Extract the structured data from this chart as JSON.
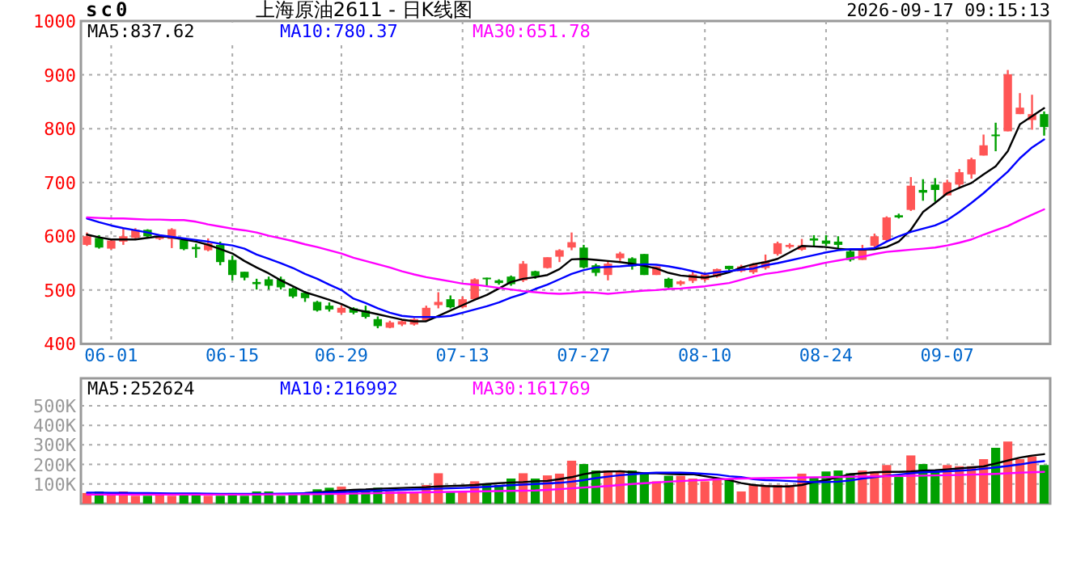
{
  "chart_data": [
    {
      "type": "candlestick",
      "title": "上海原油2611 - 日K线图",
      "annotations": [
        "sc0",
        "2026-09-17 09:15:13"
      ],
      "categories": [
        null,
        null,
        "06-01",
        null,
        null,
        null,
        null,
        null,
        null,
        null,
        null,
        null,
        "06-15",
        null,
        null,
        null,
        null,
        null,
        null,
        null,
        null,
        "06-29",
        null,
        null,
        null,
        null,
        null,
        null,
        null,
        null,
        null,
        "07-13",
        null,
        null,
        null,
        null,
        null,
        null,
        null,
        null,
        null,
        "07-27",
        null,
        null,
        null,
        null,
        null,
        null,
        null,
        null,
        null,
        "08-10",
        null,
        null,
        null,
        null,
        null,
        null,
        null,
        null,
        null,
        "08-24",
        null,
        null,
        null,
        null,
        null,
        null,
        null,
        null,
        null,
        "09-07",
        null,
        null,
        null,
        null,
        null,
        null,
        null,
        null
      ],
      "ohlc": [
        [
          584,
          607,
          582,
          600
        ],
        [
          597,
          602,
          577,
          579
        ],
        [
          577,
          594,
          575,
          592
        ],
        [
          590,
          615,
          584,
          600
        ],
        [
          597,
          615,
          595,
          612
        ],
        [
          612,
          613,
          599,
          600
        ],
        [
          595,
          602,
          593,
          600
        ],
        [
          595,
          615,
          578,
          613
        ],
        [
          593,
          594,
          574,
          576
        ],
        [
          580,
          586,
          560,
          576
        ],
        [
          574,
          596,
          572,
          587
        ],
        [
          584,
          590,
          546,
          552
        ],
        [
          556,
          564,
          518,
          528
        ],
        [
          534,
          534,
          518,
          523
        ],
        [
          515,
          521,
          501,
          511
        ],
        [
          520,
          525,
          501,
          508
        ],
        [
          520,
          525,
          501,
          505
        ],
        [
          503,
          505,
          485,
          488
        ],
        [
          495,
          498,
          478,
          485
        ],
        [
          478,
          480,
          460,
          462
        ],
        [
          471,
          477,
          460,
          464
        ],
        [
          458,
          472,
          455,
          467
        ],
        [
          466,
          468,
          455,
          458
        ],
        [
          462,
          471,
          447,
          450
        ],
        [
          446,
          451,
          429,
          433
        ],
        [
          430,
          443,
          429,
          440
        ],
        [
          436,
          444,
          433,
          442
        ],
        [
          436,
          448,
          434,
          446
        ],
        [
          444,
          471,
          442,
          467
        ],
        [
          472,
          496,
          466,
          478
        ],
        [
          483,
          490,
          466,
          468
        ],
        [
          468,
          488,
          466,
          483
        ],
        [
          483,
          522,
          481,
          520
        ],
        [
          523,
          523,
          506,
          520
        ],
        [
          518,
          520,
          510,
          513
        ],
        [
          525,
          527,
          508,
          511
        ],
        [
          518,
          554,
          515,
          549
        ],
        [
          535,
          536,
          521,
          526
        ],
        [
          541,
          561,
          540,
          561
        ],
        [
          562,
          576,
          552,
          574
        ],
        [
          579,
          607,
          574,
          589
        ],
        [
          579,
          584,
          540,
          542
        ],
        [
          546,
          549,
          526,
          532
        ],
        [
          528,
          554,
          518,
          549
        ],
        [
          559,
          571,
          554,
          568
        ],
        [
          559,
          561,
          538,
          544
        ],
        [
          567,
          567,
          528,
          528
        ],
        [
          528,
          544,
          528,
          544
        ],
        [
          521,
          523,
          503,
          505
        ],
        [
          511,
          518,
          508,
          516
        ],
        [
          517,
          535,
          513,
          529
        ],
        [
          519,
          532,
          516,
          529
        ],
        [
          525,
          540,
          523,
          539
        ],
        [
          545,
          545,
          532,
          539
        ],
        [
          535,
          547,
          533,
          544
        ],
        [
          533,
          550,
          530,
          548
        ],
        [
          541,
          566,
          538,
          553
        ],
        [
          567,
          590,
          564,
          587
        ],
        [
          580,
          587,
          577,
          584
        ],
        [
          575,
          595,
          573,
          583
        ],
        [
          596,
          602,
          582,
          592
        ],
        [
          592,
          602,
          582,
          586
        ],
        [
          590,
          600,
          578,
          584
        ],
        [
          572,
          574,
          553,
          556
        ],
        [
          556,
          584,
          556,
          574
        ],
        [
          582,
          605,
          579,
          600
        ],
        [
          593,
          637,
          590,
          635
        ],
        [
          639,
          642,
          633,
          635
        ],
        [
          649,
          710,
          647,
          694
        ],
        [
          686,
          706,
          666,
          681
        ],
        [
          696,
          708,
          664,
          686
        ],
        [
          676,
          705,
          676,
          700
        ],
        [
          696,
          725,
          691,
          719
        ],
        [
          715,
          746,
          707,
          743
        ],
        [
          750,
          789,
          750,
          769
        ],
        [
          789,
          811,
          758,
          786
        ],
        [
          795,
          909,
          795,
          901
        ],
        [
          827,
          866,
          827,
          839
        ],
        [
          816,
          863,
          798,
          827
        ],
        [
          827,
          832,
          787,
          803
        ]
      ],
      "series": [
        {
          "type": "line",
          "name": "MA5:837.62",
          "color": "#000000",
          "values": [
            603,
            598,
            594,
            594,
            594,
            597,
            600,
            598,
            594,
            590,
            584,
            576,
            568,
            554,
            542,
            531,
            518,
            507,
            496,
            489,
            482,
            474,
            464,
            460,
            455,
            450,
            445,
            442,
            442,
            452,
            462,
            472,
            482,
            491,
            503,
            515,
            521,
            524,
            528,
            539,
            557,
            558,
            556,
            554,
            552,
            549,
            545,
            540,
            532,
            527,
            525,
            523,
            527,
            533,
            542,
            548,
            552,
            558,
            570,
            582,
            581,
            580,
            577,
            575,
            575,
            576,
            580,
            590,
            612,
            645,
            662,
            680,
            690,
            699,
            715,
            730,
            758,
            808,
            823,
            838
          ]
        },
        {
          "type": "line",
          "name": "MA10:780.37",
          "color": "#0000ff",
          "values": [
            633,
            626,
            620,
            615,
            611,
            607,
            602,
            599,
            596,
            593,
            590,
            586,
            583,
            577,
            566,
            558,
            550,
            541,
            530,
            521,
            510,
            500,
            484,
            476,
            466,
            458,
            452,
            450,
            450,
            450,
            452,
            458,
            464,
            470,
            477,
            486,
            493,
            502,
            510,
            520,
            530,
            537,
            542,
            543,
            544,
            546,
            548,
            547,
            544,
            540,
            535,
            530,
            533,
            535,
            538,
            540,
            546,
            550,
            555,
            560,
            565,
            570,
            574,
            576,
            576,
            578,
            590,
            600,
            608,
            614,
            620,
            630,
            645,
            662,
            680,
            700,
            720,
            745,
            765,
            780
          ]
        },
        {
          "type": "line",
          "name": "MA30:651.78",
          "color": "#ff00ff",
          "values": [
            635,
            634,
            633,
            633,
            632,
            631,
            631,
            630,
            630,
            627,
            622,
            618,
            614,
            611,
            607,
            601,
            596,
            591,
            585,
            580,
            574,
            568,
            560,
            554,
            548,
            542,
            535,
            529,
            524,
            520,
            516,
            512,
            510,
            507,
            504,
            501,
            498,
            496,
            494,
            493,
            494,
            496,
            495,
            493,
            495,
            497,
            499,
            500,
            502,
            503,
            505,
            507,
            510,
            513,
            519,
            525,
            530,
            533,
            537,
            541,
            546,
            551,
            555,
            559,
            562,
            567,
            571,
            573,
            575,
            577,
            579,
            583,
            588,
            594,
            603,
            611,
            619,
            630,
            640,
            650
          ]
        }
      ],
      "ylim": [
        400,
        1000
      ],
      "yticks": [
        400,
        500,
        600,
        700,
        800,
        900,
        1000
      ],
      "grid": true,
      "legend": "top left"
    },
    {
      "type": "bar",
      "tick_labels": "y",
      "categories": [
        null,
        null,
        null,
        null,
        null,
        null,
        null,
        null,
        null,
        null,
        null,
        null,
        null,
        null,
        null,
        null,
        null,
        null,
        null,
        null,
        null,
        null,
        null,
        null,
        null,
        null,
        null,
        null,
        null,
        null,
        null,
        null,
        null,
        null,
        null,
        null,
        null,
        null,
        null,
        null,
        null,
        null,
        null,
        null,
        null,
        null,
        null,
        null,
        null,
        null,
        null,
        null,
        null,
        null,
        null,
        null,
        null,
        null,
        null,
        null,
        null,
        null,
        null,
        null,
        null,
        null,
        null,
        null,
        null,
        null,
        null,
        null,
        null,
        null,
        null,
        null,
        null,
        null,
        null,
        null
      ],
      "series": [
        {
          "type": "bar",
          "values": [
            54,
            62,
            54,
            62,
            40,
            40,
            54,
            40,
            54,
            54,
            40,
            40,
            54,
            40,
            62,
            62,
            40,
            54,
            54,
            73,
            81,
            87,
            73,
            73,
            81,
            62,
            62,
            62,
            95,
            155,
            62,
            62,
            114,
            103,
            95,
            128,
            155,
            128,
            144,
            153,
            219,
            202,
            169,
            169,
            169,
            169,
            155,
            114,
            142,
            142,
            128,
            114,
            128,
            128,
            62,
            95,
            95,
            95,
            95,
            153,
            136,
            164,
            169,
            155,
            169,
            164,
            197,
            136,
            246,
            202,
            164,
            197,
            191,
            191,
            227,
            285,
            317,
            227,
            241,
            197
          ],
          "colors": [
            "#ff5555",
            "#00a000",
            "#ff5555",
            "#ff5555",
            "#ff5555",
            "#00a000",
            "#ff5555",
            "#ff5555",
            "#00a000",
            "#00a000",
            "#ff5555",
            "#00a000",
            "#00a000",
            "#00a000",
            "#00a000",
            "#00a000",
            "#00a000",
            "#00a000",
            "#00a000",
            "#00a000",
            "#00a000",
            "#ff5555",
            "#00a000",
            "#00a000",
            "#00a000",
            "#ff5555",
            "#ff5555",
            "#ff5555",
            "#ff5555",
            "#ff5555",
            "#00a000",
            "#ff5555",
            "#ff5555",
            "#00a000",
            "#00a000",
            "#00a000",
            "#ff5555",
            "#00a000",
            "#ff5555",
            "#ff5555",
            "#ff5555",
            "#00a000",
            "#00a000",
            "#ff5555",
            "#ff5555",
            "#00a000",
            "#00a000",
            "#ff5555",
            "#00a000",
            "#ff5555",
            "#ff5555",
            "#ff5555",
            "#ff5555",
            "#00a000",
            "#ff5555",
            "#ff5555",
            "#ff5555",
            "#ff5555",
            "#ff5555",
            "#ff5555",
            "#00a000",
            "#00a000",
            "#00a000",
            "#00a000",
            "#ff5555",
            "#ff5555",
            "#ff5555",
            "#00a000",
            "#ff5555",
            "#00a000",
            "#00a000",
            "#ff5555",
            "#ff5555",
            "#ff5555",
            "#ff5555",
            "#00a000",
            "#ff5555",
            "#ff5555",
            "#ff5555",
            "#00a000"
          ]
        },
        {
          "type": "line",
          "name": "MA5:252624",
          "color": "#000000",
          "values": [
            null,
            null,
            null,
            null,
            null,
            null,
            null,
            null,
            null,
            null,
            null,
            null,
            null,
            null,
            null,
            null,
            null,
            null,
            54,
            58,
            62,
            66,
            70,
            72,
            76,
            78,
            80,
            82,
            84,
            88,
            90,
            92,
            95,
            100,
            104,
            108,
            110,
            114,
            116,
            125,
            135,
            150,
            160,
            164,
            165,
            160,
            155,
            155,
            152,
            150,
            150,
            140,
            130,
            120,
            105,
            95,
            90,
            88,
            88,
            95,
            110,
            120,
            135,
            150,
            155,
            160,
            162,
            162,
            164,
            168,
            170,
            175,
            180,
            185,
            190,
            205,
            220,
            235,
            245,
            252.624
          ]
        },
        {
          "type": "line",
          "name": "MA10:216992",
          "color": "#0000ff",
          "values": [
            56,
            56,
            55,
            55,
            54,
            54,
            53,
            52,
            52,
            52,
            51,
            50,
            50,
            50,
            50,
            50,
            51,
            52,
            53,
            55,
            57,
            59,
            61,
            64,
            66,
            68,
            70,
            72,
            74,
            76,
            78,
            80,
            83,
            86,
            90,
            94,
            97,
            100,
            103,
            106,
            112,
            120,
            130,
            138,
            145,
            150,
            155,
            158,
            158,
            158,
            156,
            152,
            148,
            140,
            135,
            125,
            120,
            118,
            115,
            112,
            110,
            110,
            112,
            118,
            128,
            135,
            142,
            148,
            155,
            160,
            162,
            165,
            168,
            172,
            178,
            185,
            192,
            200,
            210,
            216.992
          ]
        },
        {
          "type": "line",
          "name": "MA30:161769",
          "color": "#ff00ff",
          "values": [
            46,
            46,
            46,
            46,
            46,
            46,
            46,
            46,
            46,
            46,
            46,
            46,
            46,
            46,
            46,
            47,
            47,
            47,
            48,
            48,
            49,
            50,
            51,
            52,
            53,
            55,
            56,
            57,
            58,
            59,
            60,
            61,
            62,
            63,
            64,
            65,
            66,
            67,
            70,
            74,
            78,
            82,
            86,
            90,
            95,
            100,
            104,
            108,
            112,
            115,
            118,
            121,
            124,
            126,
            128,
            129,
            130,
            131,
            132,
            133,
            134,
            135,
            136,
            137,
            138,
            139,
            140,
            141,
            142,
            143,
            144,
            145,
            146,
            148,
            150,
            152,
            155,
            158,
            160,
            161.769
          ]
        }
      ],
      "ylim": [
        0,
        640
      ],
      "yticks": [
        {
          "value": 100,
          "label": "100K"
        },
        {
          "value": 200,
          "label": "200K"
        },
        {
          "value": 300,
          "label": "300K"
        },
        {
          "value": 400,
          "label": "400K"
        },
        {
          "value": 500,
          "label": "500K"
        }
      ],
      "grid": "y",
      "legend": "top left"
    }
  ]
}
